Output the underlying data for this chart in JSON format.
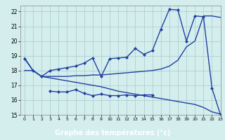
{
  "line1_x": [
    0,
    1,
    2,
    3,
    4,
    5,
    6,
    7,
    8,
    9,
    10,
    11,
    12,
    13,
    14,
    15,
    16,
    17,
    18,
    19,
    20,
    21,
    22,
    23
  ],
  "line1_y": [
    18.8,
    18.0,
    17.6,
    18.0,
    18.1,
    18.2,
    18.3,
    18.5,
    18.85,
    17.6,
    18.8,
    18.85,
    18.9,
    19.5,
    19.1,
    19.35,
    20.8,
    22.15,
    22.1,
    20.0,
    21.7,
    21.65,
    16.8,
    15.0
  ],
  "line2_x": [
    0,
    1,
    2,
    3,
    4,
    5,
    6,
    7,
    8,
    9,
    10,
    11,
    12,
    13,
    14,
    15,
    16,
    17,
    18,
    19,
    20,
    21,
    22,
    23
  ],
  "line2_y": [
    18.0,
    18.0,
    17.6,
    17.6,
    17.6,
    17.6,
    17.65,
    17.65,
    17.7,
    17.7,
    17.75,
    17.8,
    17.85,
    17.9,
    17.95,
    18.0,
    18.1,
    18.3,
    18.7,
    19.6,
    20.0,
    21.7,
    21.7,
    21.6
  ],
  "line3_x": [
    3,
    4,
    5,
    6,
    7,
    8,
    9,
    10,
    11,
    12,
    13,
    14,
    15
  ],
  "line3_y": [
    16.6,
    16.55,
    16.55,
    16.7,
    16.45,
    16.3,
    16.4,
    16.3,
    16.3,
    16.35,
    16.3,
    16.35,
    16.35
  ],
  "line4_x": [
    0,
    1,
    2,
    3,
    4,
    5,
    6,
    7,
    8,
    9,
    10,
    11,
    12,
    13,
    14,
    15,
    16,
    17,
    18,
    19,
    20,
    21,
    22,
    23
  ],
  "line4_y": [
    18.85,
    18.0,
    17.6,
    17.5,
    17.4,
    17.3,
    17.2,
    17.1,
    17.0,
    16.9,
    16.75,
    16.6,
    16.5,
    16.4,
    16.3,
    16.2,
    16.1,
    16.0,
    15.9,
    15.8,
    15.7,
    15.5,
    15.2,
    15.05
  ],
  "color": "#2040a0",
  "bg_color": "#d4eeee",
  "grid_color": "#a8c8c8",
  "xlabel": "Graphe des températures (°c)",
  "xlabel_bg": "#2040a0",
  "xlim": [
    -0.5,
    23
  ],
  "ylim": [
    15,
    22.4
  ],
  "xticks": [
    0,
    1,
    2,
    3,
    4,
    5,
    6,
    7,
    8,
    9,
    10,
    11,
    12,
    13,
    14,
    15,
    16,
    17,
    18,
    19,
    20,
    21,
    22,
    23
  ],
  "yticks": [
    15,
    16,
    17,
    18,
    19,
    20,
    21,
    22
  ],
  "marker": "D",
  "markersize": 2.0,
  "linewidth": 1.0
}
